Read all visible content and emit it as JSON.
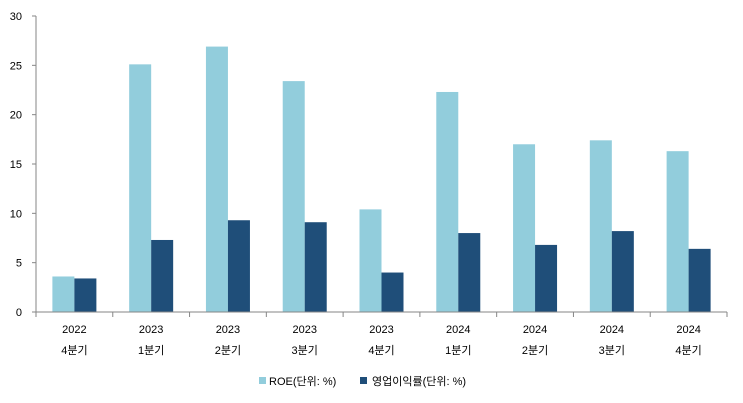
{
  "chart_data": {
    "type": "bar",
    "categories": [
      [
        "2022",
        "4분기"
      ],
      [
        "2023",
        "1분기"
      ],
      [
        "2023",
        "2분기"
      ],
      [
        "2023",
        "3분기"
      ],
      [
        "2023",
        "4분기"
      ],
      [
        "2024",
        "1분기"
      ],
      [
        "2024",
        "2분기"
      ],
      [
        "2024",
        "3분기"
      ],
      [
        "2024",
        "4분기"
      ]
    ],
    "series": [
      {
        "name": "ROE(단위: %)",
        "color": "#92cddc",
        "values": [
          3.6,
          25.1,
          26.9,
          23.4,
          10.4,
          22.3,
          17.0,
          17.4,
          16.3
        ]
      },
      {
        "name": "영업이익률(단위: %)",
        "color": "#1f4e79",
        "values": [
          3.4,
          7.3,
          9.3,
          9.1,
          4.0,
          8.0,
          6.8,
          8.2,
          6.4
        ]
      }
    ],
    "ylim": [
      0,
      30
    ],
    "yticks": [
      0,
      5,
      10,
      15,
      20,
      25,
      30
    ],
    "grid": false,
    "legend_position": "bottom"
  }
}
